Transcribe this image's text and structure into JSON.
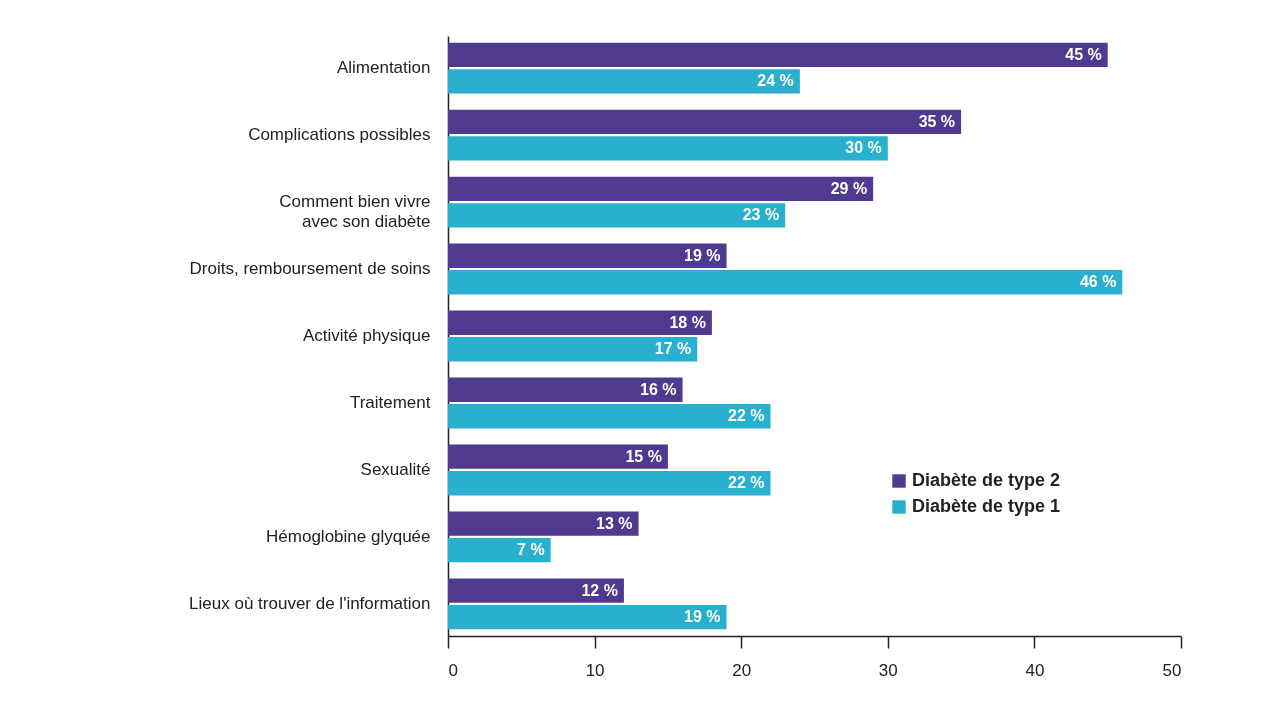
{
  "chart_data": {
    "type": "bar",
    "orientation": "horizontal",
    "categories": [
      "Alimentation",
      "Complications possibles",
      "Comment bien vivre\navec son diabète",
      "Droits, remboursement de soins",
      "Activité physique",
      "Traitement",
      "Sexualité",
      "Hémoglobine glyquée",
      "Lieux où trouver de l'information"
    ],
    "series": [
      {
        "name": "Diabète de type 2",
        "color": "#4f3a8f",
        "values": [
          45,
          35,
          29,
          19,
          18,
          16,
          15,
          13,
          12
        ],
        "value_labels": [
          "45 %",
          "35 %",
          "29 %",
          "19 %",
          "18 %",
          "16 %",
          "15 %",
          "13 %",
          "12 %"
        ]
      },
      {
        "name": "Diabète de type 1",
        "color": "#29b0cf",
        "values": [
          24,
          30,
          23,
          46,
          17,
          22,
          22,
          7,
          19
        ],
        "value_labels": [
          "24 %",
          "30 %",
          "23 %",
          "46 %",
          "17 %",
          "22 %",
          "22 %",
          "7 %",
          "19 %"
        ]
      }
    ],
    "xlim": [
      0,
      50
    ],
    "xticks": [
      0,
      10,
      20,
      30,
      40,
      50
    ],
    "legend": "bottom right"
  }
}
